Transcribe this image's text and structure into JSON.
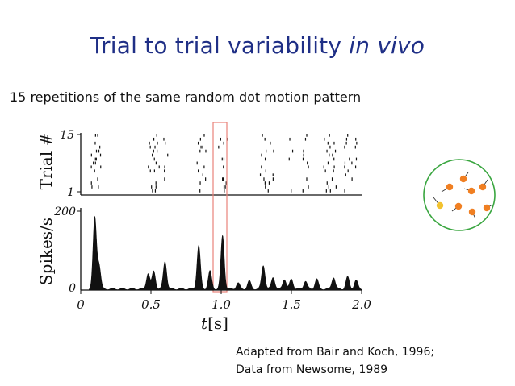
{
  "slide": {
    "title_main": "Trial to trial variability ",
    "title_italic": "in vivo",
    "subtitle": "15 repetitions of the same random dot motion pattern",
    "caption_line1": "Adapted from Bair and Koch, 1996;",
    "caption_line2": "Data from Newsome, 1989"
  },
  "figure": {
    "raster": {
      "ylabel": "Trial #",
      "ytick_top": "15",
      "ytick_bottom": "1"
    },
    "psth": {
      "ylabel": "Spikes/s",
      "ytick_top": "200",
      "ytick_bottom": "0"
    },
    "x_ticks": [
      "0",
      "0.5",
      "1.0",
      "1.5",
      "2.0"
    ],
    "xlabel_t": "t",
    "xlabel_unit": "[s]",
    "highlight_color": "#e8837a",
    "dot_circle_color": "#3aa640",
    "dot_color": "#f07f22"
  },
  "chart_data": [
    {
      "type": "raster",
      "ylabel": "Trial #",
      "x_range": [
        0,
        2.0
      ],
      "trials": 15,
      "highlight_window": [
        0.98,
        1.06
      ],
      "spike_clusters_s": [
        0.1,
        0.12,
        0.5,
        0.55,
        0.6,
        0.85,
        0.87,
        1.0,
        1.02,
        1.3,
        1.35,
        1.5,
        1.6,
        1.75,
        1.8,
        1.9,
        1.95
      ]
    },
    {
      "type": "area",
      "ylabel": "Spikes/s",
      "xlabel": "t[s]",
      "x_ticks": [
        0,
        0.5,
        1.0,
        1.5,
        2.0
      ],
      "ylim": [
        0,
        200
      ],
      "peaks": [
        {
          "t": 0.1,
          "rate": 180
        },
        {
          "t": 0.13,
          "rate": 60
        },
        {
          "t": 0.48,
          "rate": 40
        },
        {
          "t": 0.52,
          "rate": 45
        },
        {
          "t": 0.6,
          "rate": 70
        },
        {
          "t": 0.84,
          "rate": 110
        },
        {
          "t": 0.92,
          "rate": 45
        },
        {
          "t": 1.01,
          "rate": 135
        },
        {
          "t": 1.12,
          "rate": 15
        },
        {
          "t": 1.2,
          "rate": 20
        },
        {
          "t": 1.3,
          "rate": 60
        },
        {
          "t": 1.37,
          "rate": 30
        },
        {
          "t": 1.45,
          "rate": 25
        },
        {
          "t": 1.5,
          "rate": 25
        },
        {
          "t": 1.6,
          "rate": 20
        },
        {
          "t": 1.68,
          "rate": 25
        },
        {
          "t": 1.8,
          "rate": 30
        },
        {
          "t": 1.9,
          "rate": 30
        },
        {
          "t": 1.96,
          "rate": 22
        }
      ]
    }
  ]
}
